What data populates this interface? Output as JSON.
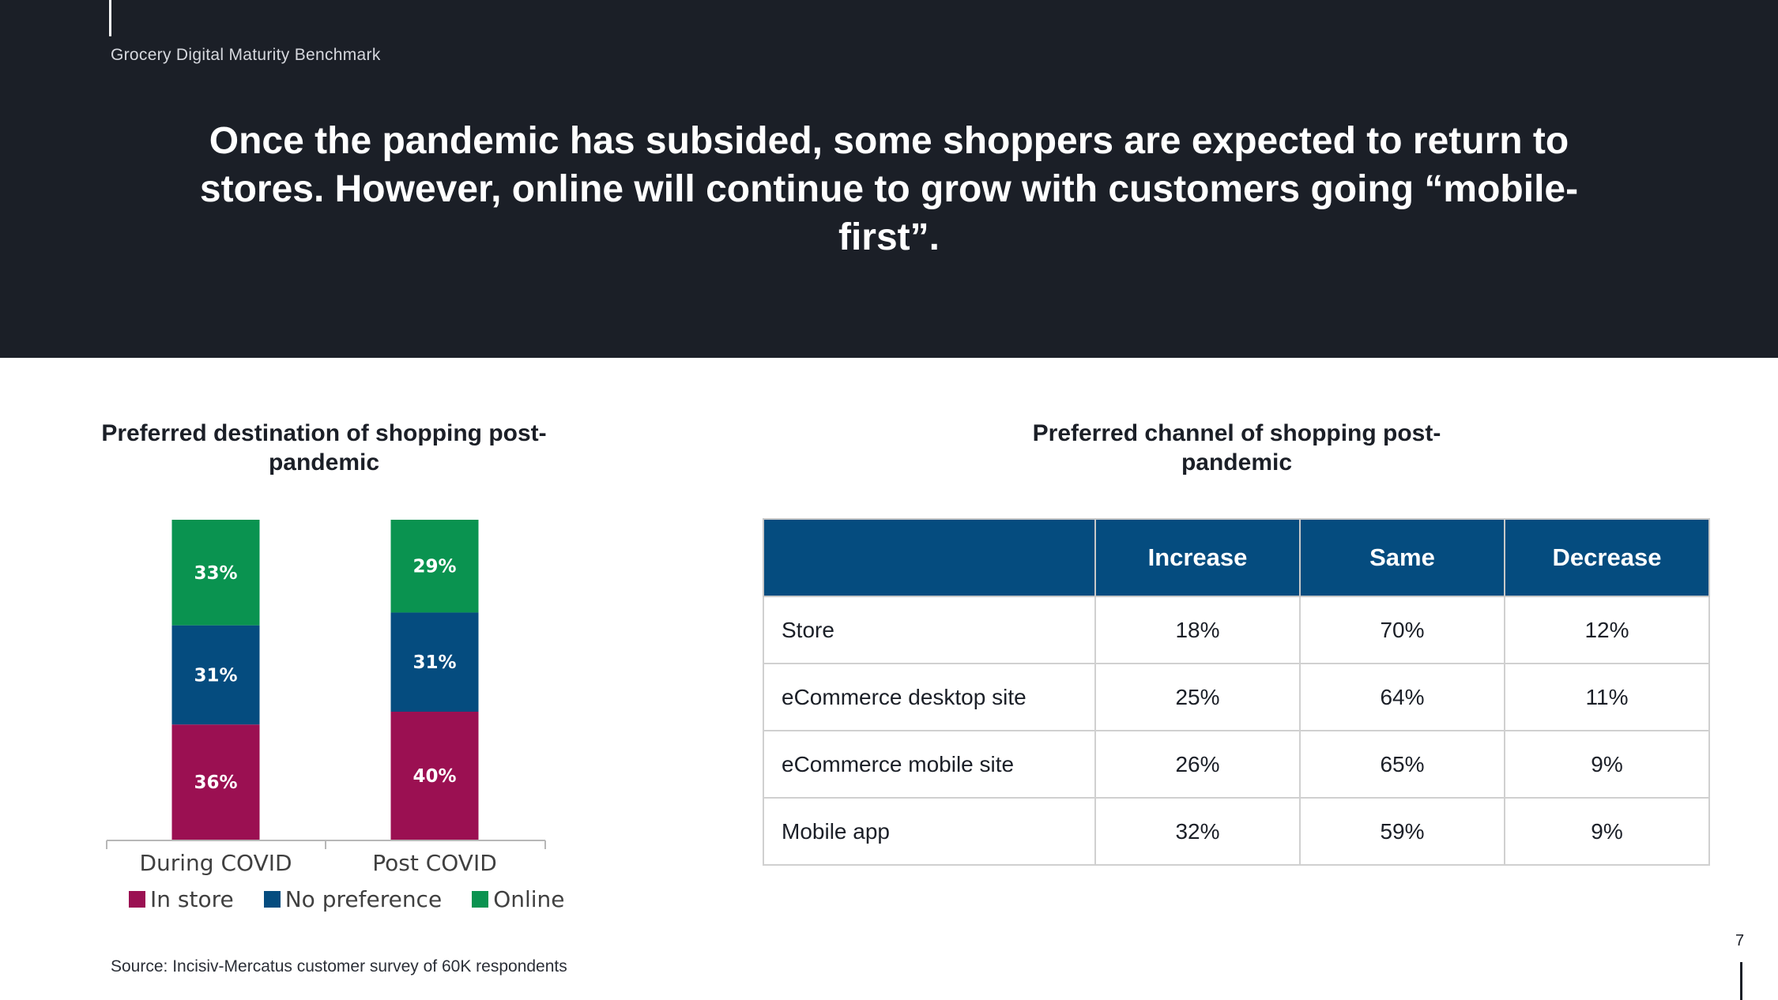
{
  "header": {
    "subtitle": "Grocery Digital Maturity Benchmark",
    "headline": "Once the pandemic has subsided, some shoppers are expected to return to stores. However, online will continue to grow with customers going “mobile-first”."
  },
  "left_chart": {
    "title": "Preferred destination of shopping post-pandemic"
  },
  "right_chart": {
    "title": "Preferred channel of shopping post-pandemic"
  },
  "chart_data": [
    {
      "type": "bar",
      "stacked": true,
      "title": "Preferred destination of shopping post-pandemic",
      "categories": [
        "During COVID",
        "Post COVID"
      ],
      "series": [
        {
          "name": "In store",
          "values": [
            36,
            40
          ],
          "labels": [
            "36%",
            "40%"
          ],
          "color": "#9b1052"
        },
        {
          "name": "No preference",
          "values": [
            31,
            31
          ],
          "labels": [
            "31%",
            "31%"
          ],
          "color": "#054c7f"
        },
        {
          "name": "Online",
          "values": [
            33,
            29
          ],
          "labels": [
            "33%",
            "29%"
          ],
          "color": "#0a9350"
        }
      ],
      "ylim": [
        0,
        100
      ],
      "legend_position": "bottom",
      "grid": false
    },
    {
      "type": "table",
      "title": "Preferred channel of shopping post-pandemic",
      "columns": [
        "",
        "Increase",
        "Same",
        "Decrease"
      ],
      "rows": [
        [
          "Store",
          "18%",
          "70%",
          "12%"
        ],
        [
          "eCommerce desktop site",
          "25%",
          "64%",
          "11%"
        ],
        [
          "eCommerce mobile site",
          "26%",
          "65%",
          "9%"
        ],
        [
          "Mobile app",
          "32%",
          "59%",
          "9%"
        ]
      ],
      "header_color": "#054c7f"
    }
  ],
  "table": {
    "columns": [
      "",
      "Increase",
      "Same",
      "Decrease"
    ],
    "rows": [
      [
        "Store",
        "18%",
        "70%",
        "12%"
      ],
      [
        "eCommerce desktop site",
        "25%",
        "64%",
        "11%"
      ],
      [
        "eCommerce mobile site",
        "26%",
        "65%",
        "9%"
      ],
      [
        "Mobile app",
        "32%",
        "59%",
        "9%"
      ]
    ]
  },
  "legend": [
    {
      "label": "In store",
      "color": "#9b1052"
    },
    {
      "label": "No preference",
      "color": "#054c7f"
    },
    {
      "label": "Online",
      "color": "#0a9350"
    }
  ],
  "footer": {
    "source": "Source: Incisiv-Mercatus customer survey of 60K respondents",
    "page_number": "7"
  }
}
